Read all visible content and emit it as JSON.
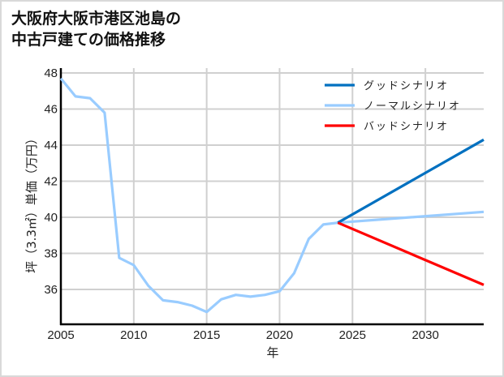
{
  "title": "大阪府大阪市港区池島の\n中古戸建ての価格推移",
  "chart_data": {
    "type": "line",
    "title": "大阪府大阪市港区池島の中古戸建ての価格推移",
    "xlabel": "年",
    "ylabel": "坪（3.3㎡）単価（万円）",
    "xlim": [
      2005,
      2034
    ],
    "ylim": [
      34.1,
      48.3
    ],
    "xticks": [
      2005,
      2010,
      2015,
      2020,
      2025,
      2030
    ],
    "yticks": [
      36,
      38,
      40,
      42,
      44,
      46,
      48
    ],
    "grid": true,
    "legend_position": "upper right",
    "series": [
      {
        "name": "ノーマルシナリオ",
        "color": "#99ccff",
        "x": [
          2005,
          2006,
          2007,
          2008,
          2009,
          2010,
          2011,
          2012,
          2013,
          2014,
          2015,
          2016,
          2017,
          2018,
          2019,
          2020,
          2021,
          2022,
          2023,
          2024,
          2034
        ],
        "values": [
          47.7,
          46.7,
          46.6,
          45.8,
          37.75,
          37.35,
          36.2,
          35.4,
          35.3,
          35.1,
          34.75,
          35.45,
          35.7,
          35.6,
          35.7,
          35.9,
          36.9,
          38.8,
          39.6,
          39.7,
          40.3
        ]
      },
      {
        "name": "グッドシナリオ",
        "color": "#0070c0",
        "x": [
          2024,
          2034
        ],
        "values": [
          39.7,
          44.3
        ]
      },
      {
        "name": "バッドシナリオ",
        "color": "#ff0000",
        "x": [
          2024,
          2034
        ],
        "values": [
          39.7,
          36.25
        ]
      }
    ],
    "legend": [
      "グッドシナリオ",
      "ノーマルシナリオ",
      "バッドシナリオ"
    ]
  }
}
